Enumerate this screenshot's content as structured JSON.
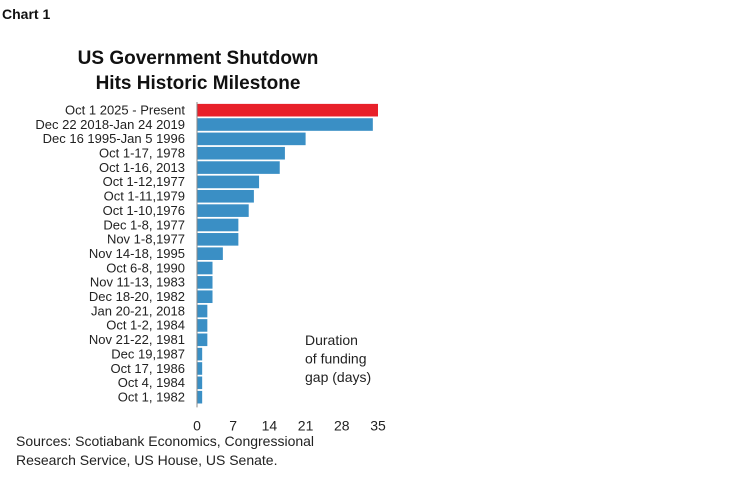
{
  "header": {
    "chart_label": "Chart 1"
  },
  "chart_data": {
    "type": "bar",
    "orientation": "horizontal",
    "title_lines": [
      "US Government Shutdown",
      "Hits Historic Milestone"
    ],
    "categories": [
      "Oct 1 2025 - Present",
      "Dec 22 2018-Jan 24 2019",
      "Dec 16 1995-Jan 5 1996",
      "Oct 1-17, 1978",
      "Oct 1-16, 2013",
      "Oct 1-12,1977",
      "Oct 1-11,1979",
      "Oct 1-10,1976",
      "Dec 1-8, 1977",
      "Nov 1-8,1977",
      "Nov 14-18, 1995",
      "Oct 6-8, 1990",
      "Nov 11-13, 1983",
      "Dec 18-20, 1982",
      "Jan 20-21, 2018",
      "Oct 1-2, 1984",
      "Nov 21-22, 1981",
      "Dec 19,1987",
      "Oct 17, 1986",
      "Oct 4, 1984",
      "Oct 1, 1982"
    ],
    "values": [
      35,
      34,
      21,
      17,
      16,
      12,
      11,
      10,
      8,
      8,
      5,
      3,
      3,
      3,
      2,
      2,
      2,
      1,
      1,
      1,
      1
    ],
    "highlight_index": 0,
    "colors": {
      "highlight": "#e8202a",
      "bar": "#3a8fc5"
    },
    "xlim": [
      0,
      35
    ],
    "xticks": [
      0,
      7,
      14,
      21,
      28,
      35
    ],
    "annotation_lines": [
      "Duration",
      "of funding",
      "gap (days)"
    ],
    "grid": false
  },
  "footer": {
    "source_lines": [
      "Sources: Scotiabank Economics, Congressional",
      "Research Service, US House, US Senate."
    ]
  }
}
